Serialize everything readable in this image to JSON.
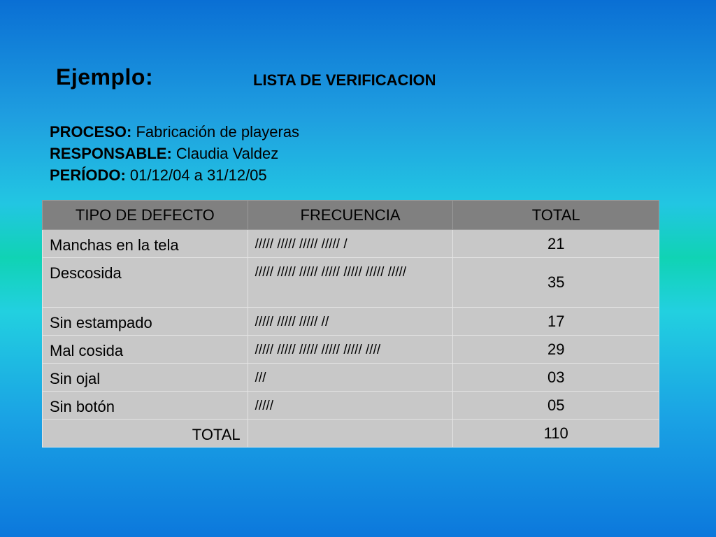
{
  "heading": {
    "ejemplo": "Ejemplo:",
    "lista": "LISTA DE VERIFICACION"
  },
  "info": {
    "proceso_label": "PROCESO:",
    "proceso_value": "Fabricación de playeras",
    "responsable_label": "RESPONSABLE:",
    "responsable_value": "Claudia Valdez",
    "periodo_label": "PERÍODO:",
    "periodo_value": "01/12/04 a 31/12/05"
  },
  "table": {
    "headers": [
      "TIPO DE DEFECTO",
      "FRECUENCIA",
      "TOTAL"
    ],
    "rows": [
      {
        "tipo": "Manchas en la tela",
        "frecuencia": "///// ///// ///// ///// /",
        "total": "21"
      },
      {
        "tipo": "Descosida",
        "frecuencia": "///// ///// ///// ///// ///// ///// /////",
        "total": "35"
      },
      {
        "tipo": "Sin estampado",
        "frecuencia": "///// ///// ///// //",
        "total": "17"
      },
      {
        "tipo": "Mal cosida",
        "frecuencia": "///// ///// ///// ///// ///// ////",
        "total": "29"
      },
      {
        "tipo": "Sin ojal",
        "frecuencia": "///",
        "total": "03"
      },
      {
        "tipo": "Sin botón",
        "frecuencia": "/////",
        "total": "05"
      }
    ],
    "footer": {
      "label": "TOTAL",
      "frecuencia": "",
      "total": "110"
    }
  }
}
